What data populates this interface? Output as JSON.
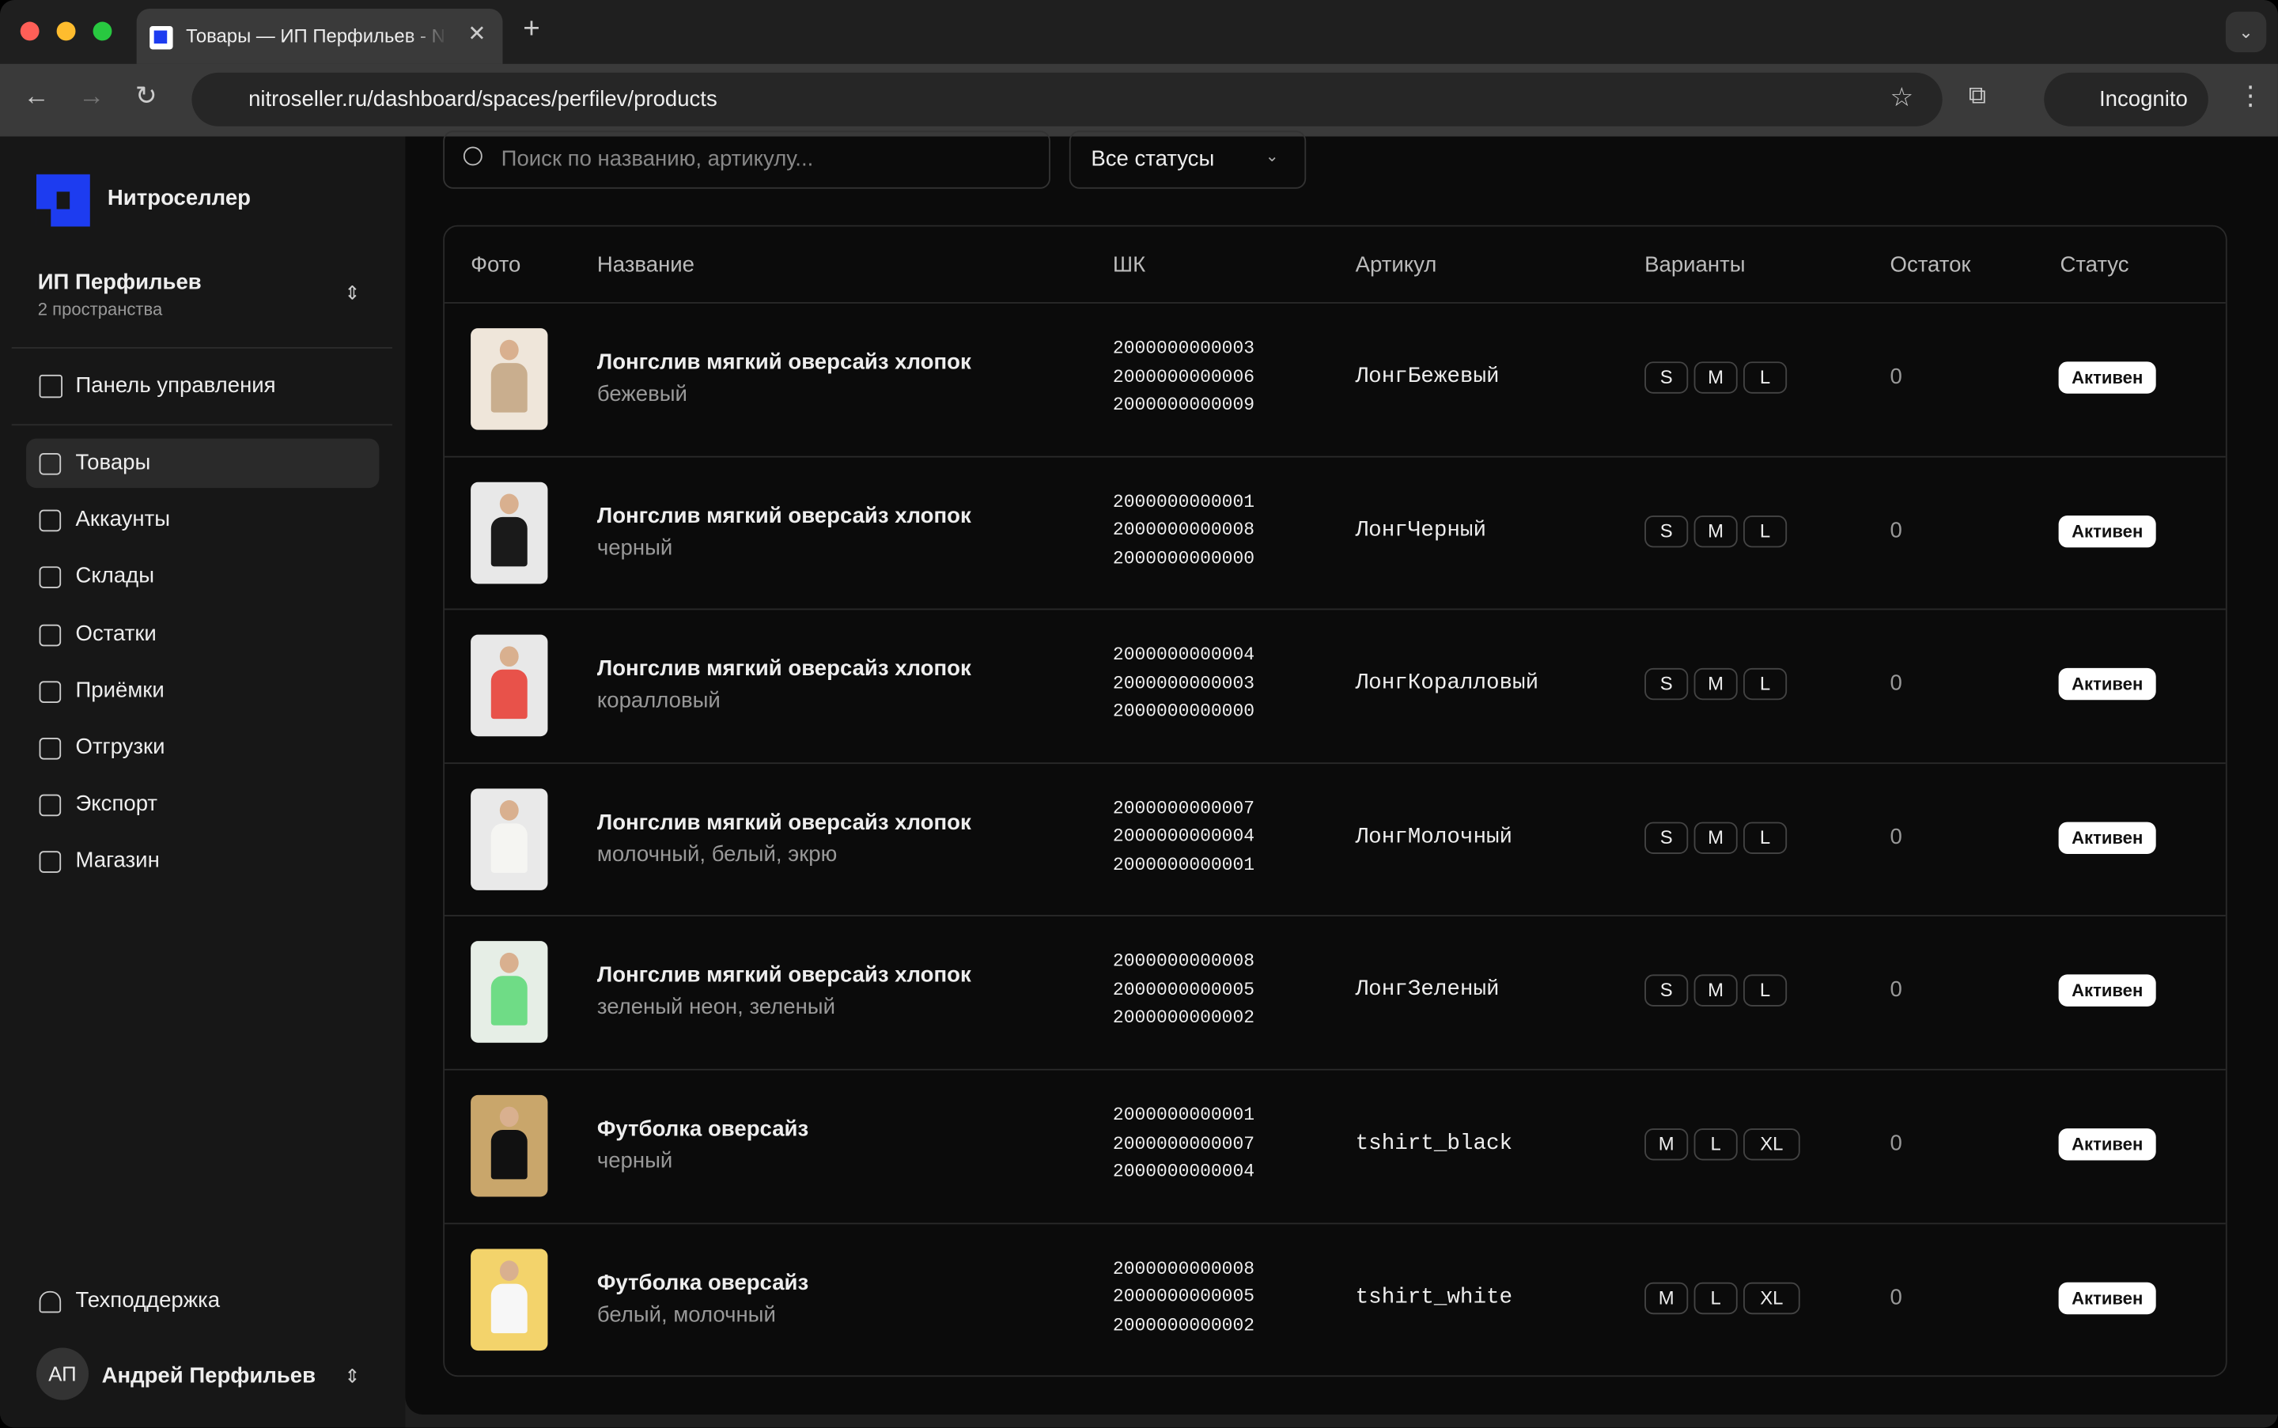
{
  "browser": {
    "tab_title": "Товары — ИП Перфильев - N",
    "url": "nitroseller.ru/dashboard/spaces/perfilev/products",
    "profile": "Incognito"
  },
  "sidebar": {
    "brand": "Нитроселлер",
    "workspace": "ИП Перфильев",
    "workspace_sub": "2 пространства",
    "dashboard": "Панель управления",
    "nav": [
      "Товары",
      "Аккаунты",
      "Склады",
      "Остатки",
      "Приёмки",
      "Отгрузки",
      "Экспорт",
      "Магазин"
    ],
    "support": "Техподдержка",
    "user_initials": "АП",
    "user_name": "Андрей Перфильев"
  },
  "filters": {
    "search_placeholder": "Поиск по названию, артикулу...",
    "status": "Все статусы"
  },
  "table": {
    "columns": [
      "Фото",
      "Название",
      "ШК",
      "Артикул",
      "Варианты",
      "Остаток",
      "Статус"
    ],
    "rows": [
      {
        "name": "Лонгслив мягкий оверсайз хлопок",
        "variant": "бежевый",
        "barcodes": [
          "2000000000003",
          "2000000000006",
          "2000000000009"
        ],
        "sku": "ЛонгБежевый",
        "sizes": [
          "S",
          "M",
          "L"
        ],
        "stock": 0,
        "status": "Активен"
      },
      {
        "name": "Лонгслив мягкий оверсайз хлопок",
        "variant": "черный",
        "barcodes": [
          "2000000000001",
          "2000000000008",
          "2000000000000"
        ],
        "sku": "ЛонгЧерный",
        "sizes": [
          "S",
          "M",
          "L"
        ],
        "stock": 0,
        "status": "Активен"
      },
      {
        "name": "Лонгслив мягкий оверсайз хлопок",
        "variant": "коралловый",
        "barcodes": [
          "2000000000004",
          "2000000000003",
          "2000000000000"
        ],
        "sku": "ЛонгКоралловый",
        "sizes": [
          "S",
          "M",
          "L"
        ],
        "stock": 0,
        "status": "Активен"
      },
      {
        "name": "Лонгслив мягкий оверсайз хлопок",
        "variant": "молочный, белый, экрю",
        "barcodes": [
          "2000000000007",
          "2000000000004",
          "2000000000001"
        ],
        "sku": "ЛонгМолочный",
        "sizes": [
          "S",
          "M",
          "L"
        ],
        "stock": 0,
        "status": "Активен"
      },
      {
        "name": "Лонгслив мягкий оверсайз хлопок",
        "variant": "зеленый неон, зеленый",
        "barcodes": [
          "2000000000008",
          "2000000000005",
          "2000000000002"
        ],
        "sku": "ЛонгЗеленый",
        "sizes": [
          "S",
          "M",
          "L"
        ],
        "stock": 0,
        "status": "Активен"
      },
      {
        "name": "Футболка оверсайз",
        "variant": "черный",
        "barcodes": [
          "2000000000001",
          "2000000000007",
          "2000000000004"
        ],
        "sku": "tshirt_black",
        "sizes": [
          "M",
          "L",
          "XL"
        ],
        "stock": 0,
        "status": "Активен"
      },
      {
        "name": "Футболка оверсайз",
        "variant": "белый, молочный",
        "barcodes": [
          "2000000000008",
          "2000000000005",
          "2000000000002"
        ],
        "sku": "tshirt_white",
        "sizes": [
          "M",
          "L",
          "XL"
        ],
        "stock": 0,
        "status": "Активен"
      }
    ]
  }
}
